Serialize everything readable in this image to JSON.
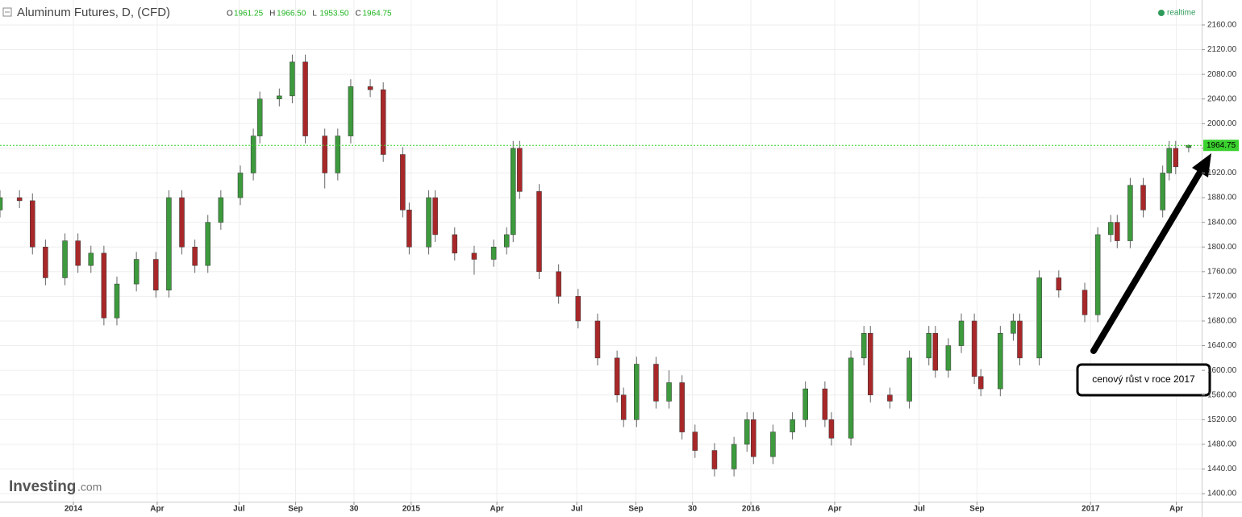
{
  "header": {
    "title": "Aluminum Futures, D, (CFD)",
    "ohlc": [
      {
        "label": "O",
        "value": "1961.25"
      },
      {
        "label": "H",
        "value": "1966.50"
      },
      {
        "label": "L",
        "value": "1953.50"
      },
      {
        "label": "C",
        "value": "1964.75"
      }
    ],
    "status": "realtime"
  },
  "brand": {
    "name": "Investing",
    "suffix": ".com"
  },
  "chart_data": {
    "type": "candlestick",
    "annotation": "cenový růst v roce 2017",
    "up_color": "#3d9a3d",
    "down_color": "#a8282a",
    "last_price_color": "#3ad12f",
    "grid": true,
    "xlim": [
      0,
      185
    ],
    "ylim": [
      1387,
      2200.5
    ],
    "xticks": [
      {
        "value": 11.3,
        "label": "2014"
      },
      {
        "value": 24.2,
        "label": "Apr"
      },
      {
        "value": 36.8,
        "label": "Jul"
      },
      {
        "value": 45.5,
        "label": "Sep"
      },
      {
        "value": 54.5,
        "label": "30"
      },
      {
        "value": 63.3,
        "label": "2015"
      },
      {
        "value": 76.5,
        "label": "Apr"
      },
      {
        "value": 88.8,
        "label": "Jul"
      },
      {
        "value": 97.9,
        "label": "Sep"
      },
      {
        "value": 106.6,
        "label": "30"
      },
      {
        "value": 115.6,
        "label": "2016"
      },
      {
        "value": 128.5,
        "label": "Apr"
      },
      {
        "value": 141.5,
        "label": "Jul"
      },
      {
        "value": 150.4,
        "label": "Sep"
      },
      {
        "value": 167.9,
        "label": "2017"
      },
      {
        "value": 181.1,
        "label": "Apr"
      }
    ],
    "yticks": [
      {
        "value": 1400,
        "label": "1400.00"
      },
      {
        "value": 1440,
        "label": "1440.00"
      },
      {
        "value": 1480,
        "label": "1480.00"
      },
      {
        "value": 1520,
        "label": "1520.00"
      },
      {
        "value": 1560,
        "label": "1560.00"
      },
      {
        "value": 1600,
        "label": "1600.00"
      },
      {
        "value": 1640,
        "label": "1640.00"
      },
      {
        "value": 1680,
        "label": "1680.00"
      },
      {
        "value": 1720,
        "label": "1720.00"
      },
      {
        "value": 1760,
        "label": "1760.00"
      },
      {
        "value": 1800,
        "label": "1800.00"
      },
      {
        "value": 1840,
        "label": "1840.00"
      },
      {
        "value": 1880,
        "label": "1880.00"
      },
      {
        "value": 1920,
        "label": "1920.00"
      },
      {
        "value": 1960,
        "label": "1960.00"
      },
      {
        "value": 2000,
        "label": "2000.00"
      },
      {
        "value": 2040,
        "label": "2040.00"
      },
      {
        "value": 2080,
        "label": "2080.00"
      },
      {
        "value": 2120,
        "label": "2120.00"
      },
      {
        "value": 2160,
        "label": "2160.00"
      }
    ],
    "x": [
      0,
      3,
      5,
      7,
      10,
      12,
      14,
      16,
      18,
      21,
      24,
      26,
      28,
      30,
      32,
      34,
      37,
      39,
      40,
      43,
      45,
      47,
      50,
      52,
      54,
      57,
      59,
      62,
      63,
      66,
      67,
      70,
      73,
      76,
      78,
      79,
      80,
      83,
      86,
      89,
      92,
      95,
      96,
      98,
      101,
      103,
      105,
      107,
      110,
      113,
      115,
      116,
      119,
      122,
      124,
      127,
      128,
      131,
      133,
      134,
      137,
      140,
      143,
      144,
      146,
      148,
      150,
      151,
      154,
      156,
      157,
      160,
      163,
      167,
      169,
      171,
      172,
      174,
      176,
      179,
      180,
      181,
      183
    ],
    "open": [
      1860,
      1880,
      1875,
      1800,
      1750,
      1810,
      1770,
      1790,
      1685,
      1740,
      1780,
      1730,
      1880,
      1800,
      1770,
      1840,
      1880,
      1920,
      1980,
      2040,
      2045,
      2100,
      1980,
      1920,
      1980,
      2060,
      2055,
      1950,
      1860,
      1800,
      1880,
      1820,
      1790,
      1780,
      1800,
      1820,
      1960,
      1890,
      1760,
      1720,
      1680,
      1620,
      1560,
      1520,
      1610,
      1550,
      1580,
      1500,
      1470,
      1440,
      1480,
      1520,
      1460,
      1500,
      1520,
      1570,
      1520,
      1490,
      1620,
      1660,
      1560,
      1550,
      1620,
      1660,
      1600,
      1640,
      1680,
      1590,
      1570,
      1660,
      1680,
      1620,
      1750,
      1730,
      1690,
      1820,
      1840,
      1810,
      1900,
      1860,
      1920,
      1960,
      1961.25
    ],
    "high": [
      1892,
      1892,
      1887,
      1812,
      1822,
      1822,
      1802,
      1802,
      1752,
      1792,
      1792,
      1892,
      1892,
      1812,
      1852,
      1892,
      1932,
      1992,
      2052,
      2057,
      2112,
      2112,
      1992,
      1992,
      2072,
      2072,
      2067,
      1962,
      1872,
      1892,
      1892,
      1832,
      1802,
      1812,
      1832,
      1972,
      1972,
      1902,
      1772,
      1732,
      1692,
      1632,
      1572,
      1622,
      1622,
      1600,
      1592,
      1512,
      1482,
      1492,
      1532,
      1532,
      1512,
      1532,
      1582,
      1582,
      1532,
      1632,
      1672,
      1672,
      1572,
      1632,
      1672,
      1672,
      1652,
      1692,
      1692,
      1602,
      1672,
      1692,
      1692,
      1762,
      1762,
      1742,
      1832,
      1852,
      1852,
      1912,
      1912,
      1932,
      1972,
      1972,
      1966.5
    ],
    "low": [
      1848,
      1863,
      1788,
      1738,
      1738,
      1758,
      1758,
      1673,
      1673,
      1728,
      1718,
      1718,
      1788,
      1758,
      1758,
      1828,
      1868,
      1908,
      1968,
      2028,
      2033,
      1968,
      1895,
      1908,
      1968,
      2043,
      1938,
      1848,
      1788,
      1788,
      1808,
      1778,
      1755,
      1768,
      1788,
      1808,
      1878,
      1748,
      1708,
      1668,
      1608,
      1548,
      1508,
      1508,
      1538,
      1538,
      1488,
      1458,
      1428,
      1428,
      1468,
      1448,
      1448,
      1488,
      1508,
      1508,
      1478,
      1478,
      1608,
      1548,
      1538,
      1538,
      1608,
      1588,
      1588,
      1628,
      1578,
      1558,
      1558,
      1648,
      1608,
      1608,
      1718,
      1678,
      1678,
      1808,
      1798,
      1798,
      1848,
      1848,
      1908,
      1918,
      1953.5
    ],
    "close": [
      1880,
      1875,
      1800,
      1750,
      1810,
      1770,
      1790,
      1685,
      1740,
      1780,
      1730,
      1880,
      1800,
      1770,
      1840,
      1880,
      1920,
      1980,
      2040,
      2045,
      2100,
      1980,
      1920,
      1980,
      2060,
      2055,
      1950,
      1860,
      1800,
      1880,
      1820,
      1790,
      1780,
      1800,
      1820,
      1960,
      1890,
      1760,
      1720,
      1680,
      1620,
      1560,
      1520,
      1610,
      1550,
      1580,
      1500,
      1470,
      1440,
      1480,
      1520,
      1460,
      1500,
      1520,
      1570,
      1520,
      1490,
      1620,
      1660,
      1560,
      1550,
      1620,
      1660,
      1600,
      1640,
      1680,
      1590,
      1570,
      1660,
      1680,
      1620,
      1750,
      1730,
      1690,
      1820,
      1840,
      1810,
      1900,
      1860,
      1920,
      1960,
      1930,
      1964.75
    ]
  }
}
